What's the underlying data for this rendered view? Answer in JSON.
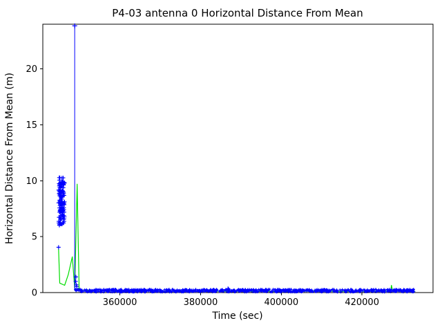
{
  "chart_data": {
    "type": "scatter",
    "title": "P4-03 antenna 0 Horizontal Distance From Mean",
    "xlabel": "Time (sec)",
    "ylabel": "Horizontal Distance From Mean (m)",
    "xlim": [
      340900,
      437600
    ],
    "ylim": [
      0,
      24
    ],
    "xticks": [
      360000,
      380000,
      400000,
      420000
    ],
    "yticks": [
      0,
      5,
      10,
      15,
      20
    ],
    "grid": false,
    "legend": "none",
    "colors": {
      "marker": "#0000ff",
      "line": "#00dd00",
      "axis": "#000000",
      "background": "#ffffff"
    },
    "series": [
      {
        "name": "green-line",
        "type": "line",
        "points": [
          [
            344800,
            3.9
          ],
          [
            345100,
            0.85
          ],
          [
            346300,
            0.65
          ],
          [
            347200,
            1.6
          ],
          [
            348200,
            3.2
          ],
          [
            348800,
            0.35
          ],
          [
            349400,
            9.7
          ],
          [
            349900,
            0.25
          ],
          [
            360000,
            0.13
          ],
          [
            380000,
            0.12
          ],
          [
            400000,
            0.12
          ],
          [
            420000,
            0.12
          ],
          [
            427100,
            0.12
          ],
          [
            427300,
            0.65
          ],
          [
            427600,
            0.12
          ],
          [
            433200,
            0.1
          ]
        ]
      },
      {
        "name": "blue-cluster",
        "type": "scatter-cluster",
        "x_min": 344800,
        "x_max": 346300,
        "y_min": 6.0,
        "y_max": 10.3,
        "count": 130
      },
      {
        "name": "blue-bottom-band",
        "type": "scatter-cluster",
        "x_min": 348800,
        "x_max": 433200,
        "y_min": 0.04,
        "y_max": 0.3,
        "count": 900
      },
      {
        "name": "blue-top-spike",
        "type": "vline",
        "x": 348800,
        "y_bottom": 0.2,
        "y_top": 23.85
      },
      {
        "name": "blue-extra-points",
        "type": "scatter-points",
        "points": [
          [
            344800,
            4.05
          ],
          [
            349100,
            1.4
          ],
          [
            349050,
            1.0
          ],
          [
            349200,
            0.7
          ],
          [
            349300,
            0.55
          ],
          [
            386800,
            0.35
          ],
          [
            386900,
            0.3
          ]
        ]
      }
    ]
  }
}
